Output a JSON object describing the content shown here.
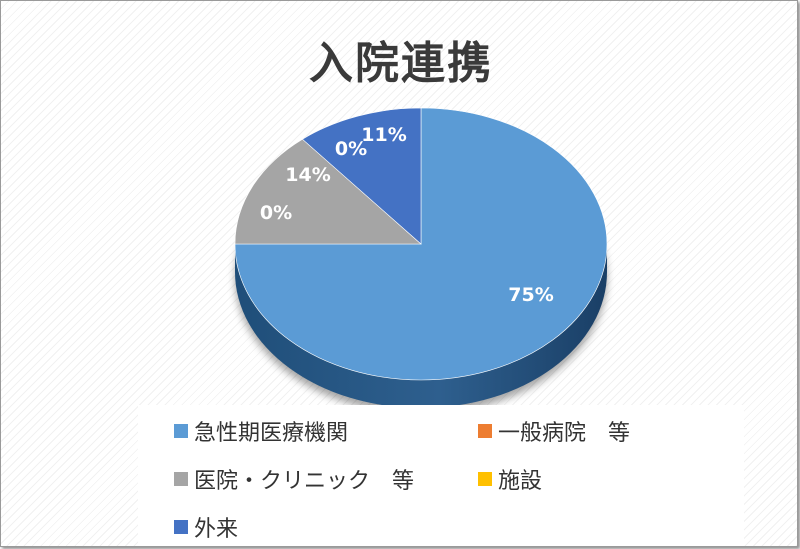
{
  "chart_data": {
    "type": "pie",
    "title": "入院連携",
    "categories": [
      "急性期医療機関",
      "一般病院　等",
      "医院・クリニック　等",
      "施設",
      "外来"
    ],
    "values": [
      75,
      0,
      14,
      0,
      11
    ],
    "labels": [
      "75%",
      "0%",
      "14%",
      "0%",
      "11%"
    ],
    "colors": [
      "#5b9bd5",
      "#ed7d31",
      "#a5a5a5",
      "#ffc000",
      "#4472c4"
    ],
    "legend_position": "bottom",
    "style": "3d"
  }
}
